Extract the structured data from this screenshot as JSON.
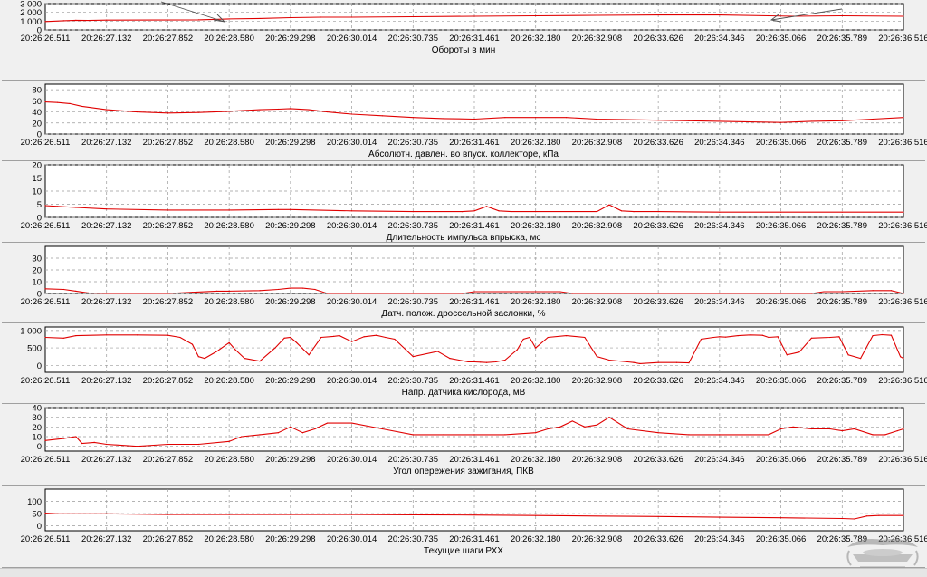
{
  "window": {
    "title": ""
  },
  "x_ticks": [
    "20:26:26.511",
    "20:26:27.132",
    "20:26:27.852",
    "20:26:28.580",
    "20:26:29.298",
    "20:26:30.014",
    "20:26:30.735",
    "20:26:31.461",
    "20:26:32.180",
    "20:26:32.908",
    "20:26:33.626",
    "20:26:34.346",
    "20:26:35.066",
    "20:26:35.789",
    "20:26:36.516"
  ],
  "colors": {
    "series": "#e00000",
    "background": "#f0f0f0",
    "plot": "#ffffff",
    "grid": "#9a9a9a"
  },
  "logo": {
    "text": ""
  },
  "chart_data": [
    {
      "type": "line",
      "title": "Обороты в мин",
      "ylabel": "",
      "xlabel": "",
      "ylim": [
        0,
        3000
      ],
      "yticks": [
        "3 000",
        "2 000",
        "1 000",
        "0"
      ],
      "grid": true,
      "series_color": "#e00000",
      "x": [
        0,
        0.3,
        0.5,
        0.7,
        1.0,
        2.5,
        3.0,
        3.5,
        4.0,
        4.5,
        5.0,
        6.0,
        7.0,
        8.0,
        9.0,
        10.0,
        11.0,
        11.8,
        12.2,
        13.0,
        14.0
      ],
      "values": [
        950,
        1050,
        1100,
        1080,
        1120,
        1150,
        1250,
        1300,
        1400,
        1450,
        1450,
        1500,
        1550,
        1600,
        1650,
        1700,
        1700,
        1600,
        1550,
        1600,
        1550
      ]
    },
    {
      "type": "line",
      "title": "Абсолютн. давлен. во впуск. коллекторе, кПа",
      "ylabel": "",
      "xlabel": "",
      "ylim": [
        0,
        90
      ],
      "yticks": [
        "80",
        "60",
        "40",
        "20",
        "0"
      ],
      "grid": true,
      "series_color": "#e00000",
      "x": [
        0,
        0.2,
        0.4,
        0.6,
        1.0,
        1.5,
        2.0,
        2.5,
        3.0,
        3.5,
        3.8,
        4.0,
        4.3,
        4.6,
        5.0,
        5.5,
        6.0,
        6.5,
        7.0,
        7.5,
        8.0,
        8.5,
        9.0,
        9.5,
        10.0,
        10.5,
        11.0,
        11.5,
        12.0,
        12.5,
        13.0,
        13.5,
        14.0
      ],
      "values": [
        58,
        57,
        55,
        50,
        44,
        40,
        38,
        39,
        41,
        44,
        45,
        46,
        44,
        40,
        36,
        33,
        30,
        28,
        27,
        30,
        30,
        30,
        27,
        26,
        25,
        24,
        23,
        22,
        21,
        23,
        24,
        27,
        30
      ]
    },
    {
      "type": "line",
      "title": "Длительность импульса впрыска, мс",
      "ylabel": "",
      "xlabel": "",
      "ylim": [
        0,
        20
      ],
      "yticks": [
        "20",
        "15",
        "10",
        "5",
        "0"
      ],
      "grid": true,
      "series_color": "#e00000",
      "x": [
        0,
        0.2,
        0.5,
        1.0,
        2.0,
        3.0,
        3.8,
        4.0,
        5.0,
        6.0,
        6.8,
        7.0,
        7.2,
        7.4,
        7.6,
        8.0,
        9.0,
        9.2,
        9.4,
        9.6,
        10.0,
        11.0,
        12.0,
        13.0,
        14.0
      ],
      "values": [
        4.5,
        4.2,
        3.8,
        3.2,
        2.8,
        2.8,
        3.0,
        3.0,
        2.5,
        2.2,
        2.2,
        2.5,
        4.2,
        2.5,
        2.2,
        2.2,
        2.2,
        4.8,
        2.5,
        2.2,
        2.2,
        2.0,
        2.0,
        2.0,
        2.0
      ]
    },
    {
      "type": "line",
      "title": "Датч. полож. дроссельной заслонки, %",
      "ylabel": "",
      "xlabel": "",
      "ylim": [
        0,
        40
      ],
      "yticks": [
        "30",
        "20",
        "10",
        "0"
      ],
      "grid": true,
      "series_color": "#e00000",
      "x": [
        0,
        0.3,
        0.5,
        0.7,
        1.0,
        2.0,
        2.4,
        2.8,
        3.0,
        3.5,
        3.8,
        4.0,
        4.2,
        4.4,
        4.6,
        6.0,
        6.5,
        6.8,
        7.0,
        8.0,
        8.4,
        8.6,
        9.0,
        10.0,
        11.0,
        12.0,
        12.5,
        12.7,
        13.0,
        13.5,
        13.8,
        14.0
      ],
      "values": [
        4,
        3.5,
        2,
        0.5,
        0,
        0,
        1,
        2,
        2,
        2.5,
        3.5,
        4.5,
        4.5,
        3.5,
        0,
        0,
        0,
        0,
        1.5,
        1.5,
        1.5,
        0,
        0,
        0,
        0,
        0,
        0,
        1.5,
        1.5,
        2.5,
        2.5,
        0
      ]
    },
    {
      "type": "line",
      "title": "Напр. датчика кислорода, мВ",
      "ylabel": "",
      "xlabel": "",
      "ylim": [
        -200,
        1100
      ],
      "yticks": [
        "1 000",
        "500",
        "0"
      ],
      "grid": true,
      "series_color": "#e00000",
      "x": [
        0,
        0.3,
        0.5,
        1.0,
        1.5,
        2.0,
        2.2,
        2.4,
        2.5,
        2.6,
        2.8,
        3.0,
        3.1,
        3.25,
        3.5,
        3.75,
        3.9,
        4.0,
        4.1,
        4.3,
        4.5,
        4.7,
        4.8,
        5.0,
        5.2,
        5.4,
        5.55,
        5.7,
        6.0,
        6.4,
        6.6,
        6.75,
        6.9,
        7.0,
        7.1,
        7.2,
        7.35,
        7.5,
        7.7,
        7.8,
        7.9,
        8.0,
        8.2,
        8.5,
        8.8,
        9.0,
        9.2,
        9.5,
        9.6,
        9.7,
        10.0,
        10.3,
        10.5,
        10.7,
        10.9,
        11.0,
        11.1,
        11.3,
        11.5,
        11.7,
        11.8,
        11.95,
        12.1,
        12.3,
        12.5,
        12.8,
        12.95,
        13.1,
        13.3,
        13.5,
        13.65,
        13.8,
        13.95,
        14.0
      ],
      "values": [
        800,
        780,
        850,
        870,
        870,
        860,
        800,
        600,
        250,
        200,
        400,
        650,
        450,
        200,
        120,
        500,
        780,
        800,
        650,
        300,
        800,
        830,
        850,
        680,
        820,
        860,
        800,
        750,
        250,
        400,
        200,
        150,
        100,
        100,
        90,
        80,
        100,
        150,
        450,
        750,
        800,
        500,
        800,
        850,
        800,
        250,
        150,
        100,
        80,
        50,
        80,
        80,
        70,
        750,
        800,
        820,
        810,
        850,
        870,
        860,
        800,
        820,
        300,
        380,
        780,
        800,
        820,
        300,
        200,
        850,
        880,
        860,
        250,
        200
      ]
    },
    {
      "type": "line",
      "title": "Угол опережения зажигания, ПКВ",
      "ylabel": "",
      "xlabel": "",
      "ylim": [
        -5,
        40
      ],
      "yticks": [
        "40",
        "30",
        "20",
        "10",
        "0"
      ],
      "grid": true,
      "series_color": "#e00000",
      "x": [
        0,
        0.3,
        0.5,
        0.6,
        0.8,
        1.0,
        1.5,
        2.0,
        2.5,
        3.0,
        3.2,
        3.5,
        3.8,
        4.0,
        4.2,
        4.4,
        4.6,
        5.0,
        5.5,
        6.0,
        6.5,
        7.0,
        7.5,
        8.0,
        8.2,
        8.4,
        8.6,
        8.8,
        9.0,
        9.2,
        9.5,
        10.0,
        10.5,
        11.0,
        11.5,
        11.8,
        12.0,
        12.2,
        12.5,
        12.8,
        13.0,
        13.2,
        13.5,
        13.7,
        13.9,
        14.0
      ],
      "values": [
        6,
        8,
        10,
        3,
        4,
        2,
        0,
        2,
        2,
        5,
        10,
        12,
        14,
        20,
        14,
        18,
        24,
        24,
        18,
        12,
        12,
        12,
        12,
        14,
        18,
        20,
        26,
        20,
        22,
        30,
        18,
        14,
        12,
        12,
        12,
        12,
        18,
        20,
        18,
        18,
        16,
        18,
        12,
        12,
        16,
        18
      ]
    },
    {
      "type": "line",
      "title": "Текущие шаги РХХ",
      "ylabel": "",
      "xlabel": "",
      "ylim": [
        -20,
        150
      ],
      "yticks": [
        "100",
        "50",
        "0"
      ],
      "grid": true,
      "series_color": "#e00000",
      "x": [
        0,
        0.2,
        1.0,
        2.0,
        3.0,
        4.0,
        5.0,
        6.0,
        7.0,
        8.0,
        9.0,
        10.0,
        11.0,
        12.0,
        13.0,
        13.2,
        13.4,
        13.6,
        14.0
      ],
      "values": [
        52,
        49,
        49,
        46,
        46,
        46,
        46,
        45,
        44,
        42,
        40,
        38,
        35,
        33,
        30,
        28,
        40,
        42,
        42
      ]
    }
  ]
}
